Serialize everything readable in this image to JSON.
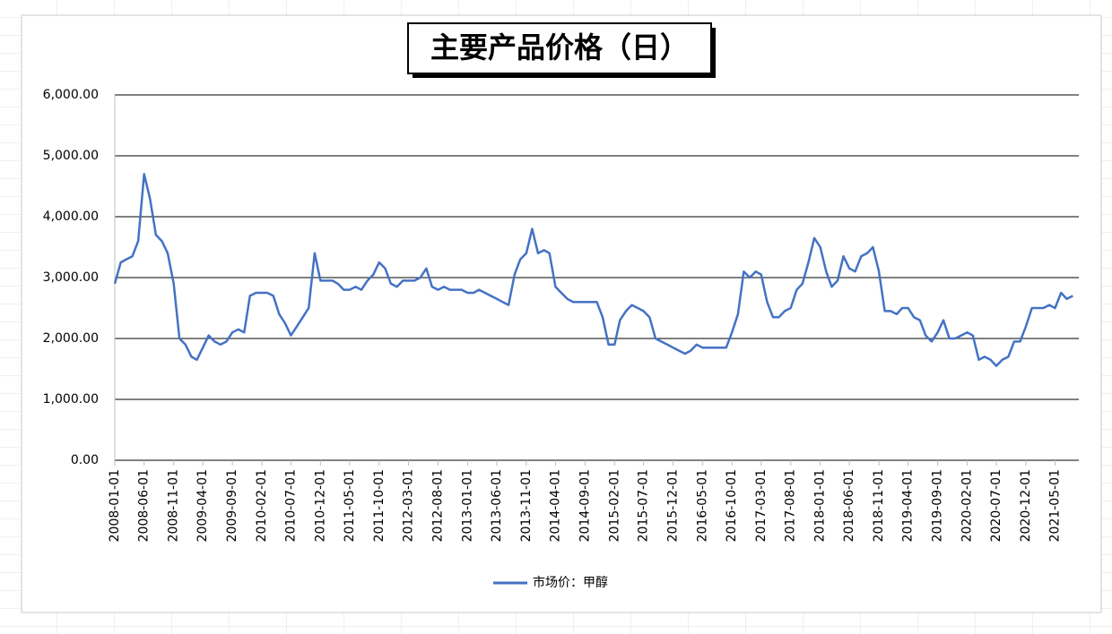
{
  "chart_data": {
    "type": "line",
    "title": "主要产品价格（日）",
    "x": [
      "2008-01-01",
      "2008-02-01",
      "2008-03-01",
      "2008-04-01",
      "2008-05-01",
      "2008-06-01",
      "2008-07-01",
      "2008-08-01",
      "2008-09-01",
      "2008-10-01",
      "2008-11-01",
      "2008-12-01",
      "2009-01-01",
      "2009-02-01",
      "2009-03-01",
      "2009-04-01",
      "2009-05-01",
      "2009-06-01",
      "2009-07-01",
      "2009-08-01",
      "2009-09-01",
      "2009-10-01",
      "2009-11-01",
      "2009-12-01",
      "2010-01-01",
      "2010-02-01",
      "2010-03-01",
      "2010-04-01",
      "2010-05-01",
      "2010-06-01",
      "2010-07-01",
      "2010-08-01",
      "2010-09-01",
      "2010-10-01",
      "2010-11-01",
      "2010-12-01",
      "2011-01-01",
      "2011-02-01",
      "2011-03-01",
      "2011-04-01",
      "2011-05-01",
      "2011-06-01",
      "2011-07-01",
      "2011-08-01",
      "2011-09-01",
      "2011-10-01",
      "2011-11-01",
      "2011-12-01",
      "2012-01-01",
      "2012-02-01",
      "2012-03-01",
      "2012-04-01",
      "2012-05-01",
      "2012-06-01",
      "2012-07-01",
      "2012-08-01",
      "2012-09-01",
      "2012-10-01",
      "2012-11-01",
      "2012-12-01",
      "2013-01-01",
      "2013-02-01",
      "2013-03-01",
      "2013-04-01",
      "2013-05-01",
      "2013-06-01",
      "2013-07-01",
      "2013-08-01",
      "2013-09-01",
      "2013-10-01",
      "2013-11-01",
      "2013-12-01",
      "2014-01-01",
      "2014-02-01",
      "2014-03-01",
      "2014-04-01",
      "2014-05-01",
      "2014-06-01",
      "2014-07-01",
      "2014-08-01",
      "2014-09-01",
      "2014-10-01",
      "2014-11-01",
      "2014-12-01",
      "2015-01-01",
      "2015-02-01",
      "2015-03-01",
      "2015-04-01",
      "2015-05-01",
      "2015-06-01",
      "2015-07-01",
      "2015-08-01",
      "2015-09-01",
      "2015-10-01",
      "2015-11-01",
      "2015-12-01",
      "2016-01-01",
      "2016-02-01",
      "2016-03-01",
      "2016-04-01",
      "2016-05-01",
      "2016-06-01",
      "2016-07-01",
      "2016-08-01",
      "2016-09-01",
      "2016-10-01",
      "2016-11-01",
      "2016-12-01",
      "2017-01-01",
      "2017-02-01",
      "2017-03-01",
      "2017-04-01",
      "2017-05-01",
      "2017-06-01",
      "2017-07-01",
      "2017-08-01",
      "2017-09-01",
      "2017-10-01",
      "2017-11-01",
      "2017-12-01",
      "2018-01-01",
      "2018-02-01",
      "2018-03-01",
      "2018-04-01",
      "2018-05-01",
      "2018-06-01",
      "2018-07-01",
      "2018-08-01",
      "2018-09-01",
      "2018-10-01",
      "2018-11-01",
      "2018-12-01",
      "2019-01-01",
      "2019-02-01",
      "2019-03-01",
      "2019-04-01",
      "2019-05-01",
      "2019-06-01",
      "2019-07-01",
      "2019-08-01",
      "2019-09-01",
      "2019-10-01",
      "2019-11-01",
      "2019-12-01",
      "2020-01-01",
      "2020-02-01",
      "2020-03-01",
      "2020-04-01",
      "2020-05-01",
      "2020-06-01",
      "2020-07-01",
      "2020-08-01",
      "2020-09-01",
      "2020-10-01",
      "2020-11-01",
      "2020-12-01",
      "2021-01-01",
      "2021-02-01",
      "2021-03-01",
      "2021-04-01",
      "2021-05-01",
      "2021-06-01",
      "2021-07-01",
      "2021-08-01"
    ],
    "series": [
      {
        "name": "市场价：甲醇",
        "color": "#4472c4",
        "values": [
          2900,
          3250,
          3300,
          3350,
          3600,
          4700,
          4300,
          3700,
          3600,
          3400,
          2900,
          2000,
          1900,
          1700,
          1650,
          1850,
          2050,
          1950,
          1900,
          1950,
          2100,
          2150,
          2100,
          2700,
          2750,
          2750,
          2750,
          2700,
          2400,
          2250,
          2050,
          2200,
          2350,
          2500,
          3400,
          2950,
          2950,
          2950,
          2900,
          2800,
          2800,
          2850,
          2800,
          2950,
          3050,
          3250,
          3150,
          2900,
          2850,
          2950,
          2950,
          2950,
          3000,
          3150,
          2850,
          2800,
          2850,
          2800,
          2800,
          2800,
          2750,
          2750,
          2800,
          2750,
          2700,
          2650,
          2600,
          2550,
          3050,
          3300,
          3400,
          3800,
          3400,
          3450,
          3400,
          2850,
          2750,
          2650,
          2600,
          2600,
          2600,
          2600,
          2600,
          2350,
          1900,
          1900,
          2300,
          2450,
          2550,
          2500,
          2450,
          2350,
          2000,
          1950,
          1900,
          1850,
          1800,
          1750,
          1800,
          1900,
          1850,
          1850,
          1850,
          1850,
          1850,
          2100,
          2400,
          3100,
          3000,
          3100,
          3050,
          2600,
          2350,
          2350,
          2450,
          2500,
          2800,
          2900,
          3250,
          3650,
          3500,
          3100,
          2850,
          2950,
          3350,
          3150,
          3100,
          3350,
          3400,
          3500,
          3100,
          2450,
          2450,
          2400,
          2500,
          2500,
          2350,
          2300,
          2050,
          1950,
          2100,
          2300,
          2000,
          2000,
          2050,
          2100,
          2050,
          1650,
          1700,
          1650,
          1550,
          1650,
          1700,
          1950,
          1950,
          2200,
          2500,
          2500,
          2500,
          2550,
          2500,
          2750,
          2650,
          2700
        ]
      }
    ],
    "xlim": [
      "2008-01-01",
      "2021-09-01"
    ],
    "xticks": [
      "2008-01-01",
      "2008-06-01",
      "2008-11-01",
      "2009-04-01",
      "2009-09-01",
      "2010-02-01",
      "2010-07-01",
      "2010-12-01",
      "2011-05-01",
      "2011-10-01",
      "2012-03-01",
      "2012-08-01",
      "2013-01-01",
      "2013-06-01",
      "2013-11-01",
      "2014-04-01",
      "2014-09-01",
      "2015-02-01",
      "2015-07-01",
      "2015-12-01",
      "2016-05-01",
      "2016-10-01",
      "2017-03-01",
      "2017-08-01",
      "2018-01-01",
      "2018-06-01",
      "2018-11-01",
      "2019-04-01",
      "2019-09-01",
      "2020-02-01",
      "2020-07-01",
      "2020-12-01",
      "2021-05-01"
    ],
    "ylim": [
      0,
      6000
    ],
    "yticks": [
      {
        "value": 0,
        "label": "0.00"
      },
      {
        "value": 1000,
        "label": "1,000.00"
      },
      {
        "value": 2000,
        "label": "2,000.00"
      },
      {
        "value": 3000,
        "label": "3,000.00"
      },
      {
        "value": 4000,
        "label": "4,000.00"
      },
      {
        "value": 5000,
        "label": "5,000.00"
      },
      {
        "value": 6000,
        "label": "6,000.00"
      }
    ],
    "grid": true,
    "legend": "bottom"
  }
}
